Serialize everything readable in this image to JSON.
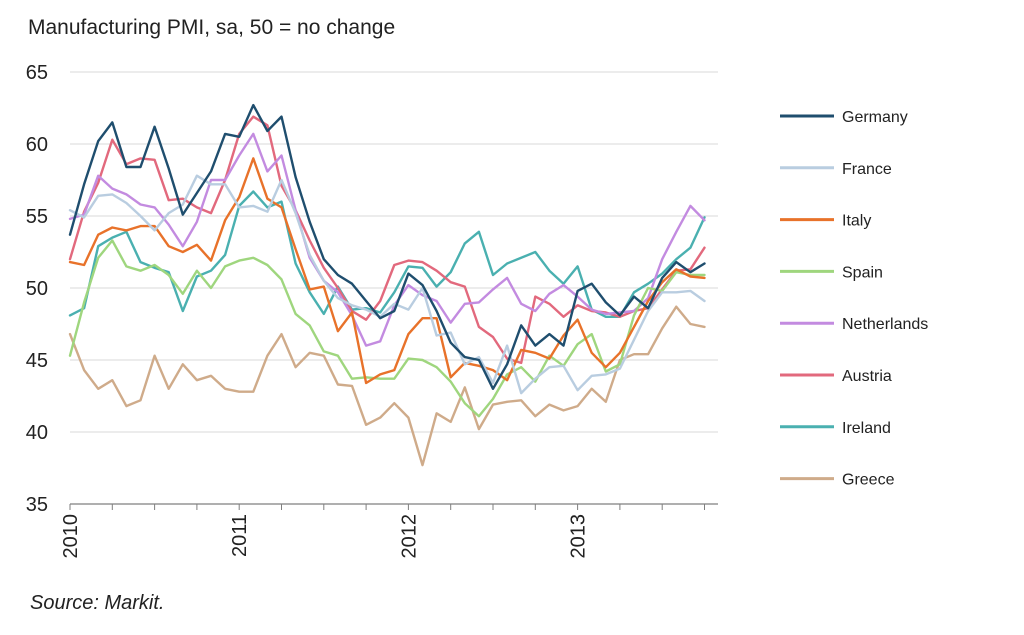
{
  "title": "Manufacturing PMI, sa, 50 = no change",
  "source": "Source: Markit.",
  "chart_data": {
    "type": "line",
    "title": "Manufacturing PMI, sa, 50 = no change",
    "xlabel": "",
    "ylabel": "",
    "ylim": [
      35,
      65
    ],
    "yticks": [
      35,
      40,
      45,
      50,
      55,
      60,
      65
    ],
    "x_start": "2010-01",
    "x_end": "2013-10",
    "x_ticks": [
      "2010",
      "2011",
      "2012",
      "2013"
    ],
    "grid": true,
    "legend_position": "right",
    "series": [
      {
        "name": "Germany",
        "color": "#1f4e6e",
        "values": [
          53.7,
          57.2,
          60.2,
          61.5,
          58.4,
          58.4,
          61.2,
          58.3,
          55.1,
          56.6,
          58.1,
          60.7,
          60.5,
          62.7,
          60.9,
          61.9,
          57.7,
          54.6,
          52.0,
          50.9,
          50.3,
          49.1,
          47.9,
          48.4,
          51.0,
          50.2,
          48.4,
          46.2,
          45.2,
          45.0,
          43.0,
          44.7,
          47.4,
          46.0,
          46.8,
          46.0,
          49.8,
          50.3,
          49.0,
          48.1,
          49.4,
          48.6,
          50.7,
          51.8,
          51.1,
          51.7
        ]
      },
      {
        "name": "France",
        "color": "#b9cde0",
        "values": [
          55.4,
          54.9,
          56.4,
          56.5,
          55.9,
          55.0,
          54.0,
          55.2,
          55.8,
          57.8,
          57.2,
          57.2,
          55.6,
          55.7,
          55.3,
          57.5,
          55.2,
          52.3,
          50.5,
          49.3,
          48.8,
          48.5,
          48.0,
          48.9,
          48.5,
          50.0,
          46.7,
          46.9,
          44.7,
          45.2,
          43.4,
          46.0,
          42.7,
          43.7,
          44.5,
          44.6,
          42.9,
          43.9,
          44.0,
          44.4,
          46.4,
          48.4,
          49.7,
          49.7,
          49.8,
          49.1
        ]
      },
      {
        "name": "Italy",
        "color": "#e8722a",
        "values": [
          51.8,
          51.6,
          53.7,
          54.2,
          54.0,
          54.3,
          54.3,
          52.9,
          52.5,
          53.0,
          51.9,
          54.7,
          56.3,
          59.0,
          56.2,
          55.6,
          52.7,
          49.9,
          50.1,
          47.0,
          48.3,
          43.4,
          44.0,
          44.3,
          46.8,
          47.9,
          47.9,
          43.8,
          44.8,
          44.6,
          44.3,
          43.6,
          45.7,
          45.5,
          45.1,
          46.7,
          47.8,
          45.5,
          44.5,
          45.5,
          47.3,
          49.1,
          50.4,
          51.3,
          50.8,
          50.7
        ]
      },
      {
        "name": "Spain",
        "color": "#9fd67e",
        "values": [
          45.3,
          49.0,
          52.1,
          53.3,
          51.5,
          51.2,
          51.6,
          50.9,
          49.6,
          51.2,
          50.0,
          51.5,
          51.9,
          52.1,
          51.6,
          50.6,
          48.2,
          47.4,
          45.6,
          45.3,
          43.7,
          43.8,
          43.7,
          43.7,
          45.1,
          45.0,
          44.5,
          43.5,
          42.0,
          41.1,
          42.3,
          44.0,
          44.5,
          43.5,
          45.3,
          44.6,
          46.1,
          46.8,
          44.2,
          44.7,
          48.1,
          50.0,
          49.8,
          51.1,
          50.9,
          50.9
        ]
      },
      {
        "name": "Netherlands",
        "color": "#c38be0",
        "values": [
          54.8,
          55.1,
          57.8,
          56.9,
          56.5,
          55.8,
          55.6,
          54.4,
          52.9,
          54.6,
          57.5,
          57.5,
          59.2,
          60.7,
          58.1,
          59.2,
          55.4,
          52.1,
          50.5,
          49.7,
          48.1,
          46.0,
          46.3,
          48.8,
          50.2,
          49.5,
          49.1,
          47.6,
          48.9,
          49.0,
          49.9,
          50.7,
          48.9,
          48.4,
          49.6,
          50.2,
          49.4,
          48.5,
          48.2,
          48.3,
          48.4,
          49.3,
          52.0,
          53.9,
          55.7,
          54.7
        ]
      },
      {
        "name": "Austria",
        "color": "#e2697d",
        "values": [
          52.0,
          55.3,
          57.3,
          60.3,
          58.6,
          59.0,
          58.9,
          56.1,
          56.2,
          55.6,
          55.2,
          57.5,
          60.7,
          61.9,
          61.3,
          57.1,
          55.4,
          53.3,
          51.4,
          50.0,
          48.4,
          47.8,
          49.1,
          51.6,
          51.9,
          51.8,
          51.2,
          50.4,
          50.1,
          47.3,
          46.6,
          45.1,
          44.8,
          49.4,
          48.9,
          48.0,
          48.8,
          48.4,
          48.3,
          48.0,
          48.4,
          48.6,
          49.9,
          51.2,
          51.3,
          52.8
        ]
      },
      {
        "name": "Ireland",
        "color": "#4ab0b0",
        "values": [
          48.1,
          48.6,
          52.9,
          53.5,
          53.9,
          51.8,
          51.4,
          51.1,
          48.4,
          50.8,
          51.2,
          52.3,
          55.7,
          56.7,
          55.6,
          56.0,
          51.7,
          49.7,
          48.2,
          50.1,
          48.5,
          48.6,
          48.3,
          49.7,
          51.5,
          51.4,
          50.1,
          51.1,
          53.1,
          53.9,
          50.9,
          51.7,
          52.1,
          52.5,
          51.2,
          50.3,
          51.5,
          48.5,
          48.0,
          48.0,
          49.7,
          50.3,
          51.0,
          52.0,
          52.8,
          54.9
        ]
      },
      {
        "name": "Greece",
        "color": "#cfab8a",
        "values": [
          46.8,
          44.3,
          43.0,
          43.6,
          41.8,
          42.2,
          45.3,
          43.0,
          44.7,
          43.6,
          43.9,
          43.0,
          42.8,
          42.8,
          45.3,
          46.8,
          44.5,
          45.5,
          45.3,
          43.3,
          43.2,
          40.5,
          41.0,
          42.0,
          41.0,
          37.7,
          41.3,
          40.7,
          43.1,
          40.2,
          41.9,
          42.1,
          42.2,
          41.1,
          41.9,
          41.5,
          41.8,
          43.0,
          42.1,
          45.0,
          45.4,
          45.4,
          47.2,
          48.7,
          47.5,
          47.3
        ]
      }
    ]
  }
}
